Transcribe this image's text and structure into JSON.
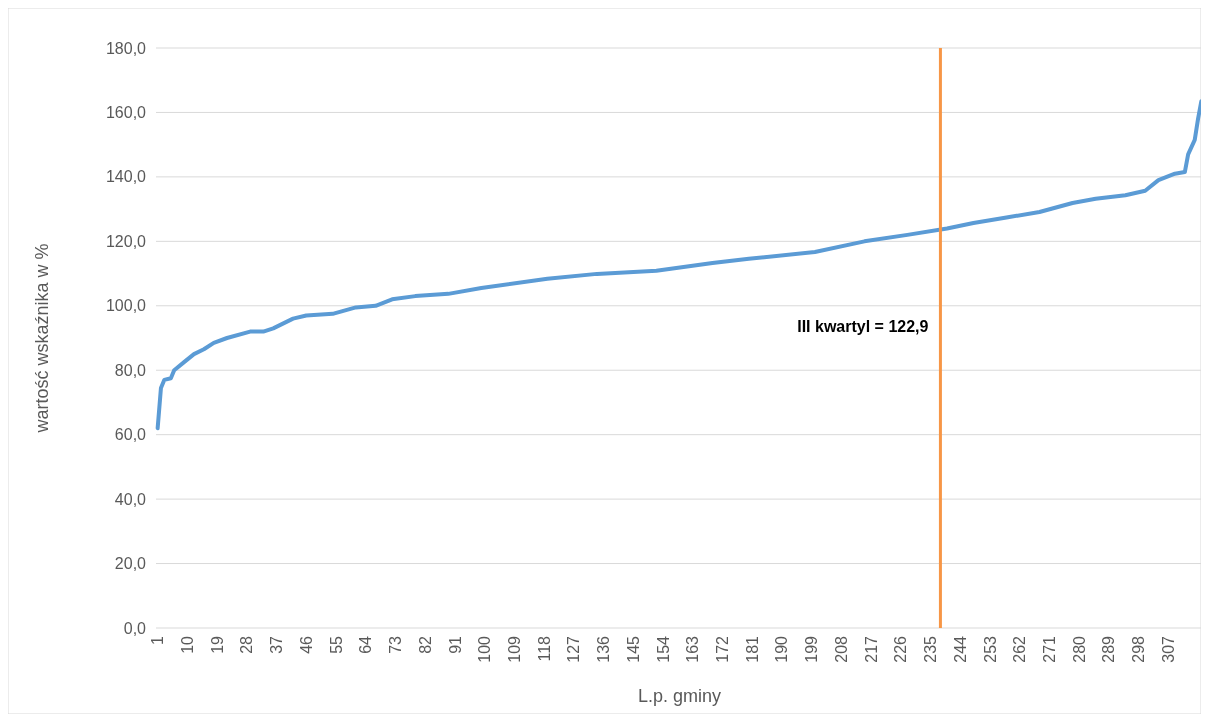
{
  "chart_data": {
    "type": "line",
    "xlabel": "L.p. gminy",
    "ylabel": "wartość wskaźnika w %",
    "x": [
      1,
      2,
      3,
      5,
      6,
      9,
      12,
      15,
      18,
      22,
      29,
      33,
      36,
      42,
      46,
      54,
      61,
      67,
      72,
      79,
      89,
      99,
      119,
      134,
      152,
      169,
      180,
      200,
      215,
      228,
      240,
      248,
      258,
      268,
      278,
      285,
      294,
      300,
      304,
      309,
      312,
      313,
      315,
      316,
      317
    ],
    "series": [
      {
        "color": "#5b9bd5",
        "values": [
          62,
          74.5,
          77,
          77.5,
          80,
          82.5,
          85,
          86.5,
          88.5,
          90,
          92,
          92,
          93,
          96,
          97,
          97.5,
          99.5,
          100,
          102,
          103,
          103.7,
          105.5,
          108.4,
          109.9,
          110.9,
          113.3,
          114.6,
          116.7,
          120,
          122,
          124,
          125.7,
          127.4,
          129.1,
          131.9,
          133.2,
          134.3,
          135.7,
          139,
          141,
          141.5,
          147,
          151.5,
          158,
          163.5
        ]
      }
    ],
    "xlim": [
      0.5,
      317.5
    ],
    "xticks": [
      1,
      10,
      19,
      28,
      37,
      46,
      55,
      64,
      73,
      82,
      91,
      100,
      109,
      118,
      127,
      136,
      145,
      154,
      163,
      172,
      181,
      190,
      199,
      208,
      217,
      226,
      235,
      244,
      253,
      262,
      271,
      280,
      289,
      298,
      307
    ],
    "ylim": [
      0,
      180
    ],
    "yticks": [
      {
        "value": 0,
        "label": "0,0"
      },
      {
        "value": 20,
        "label": "20,0"
      },
      {
        "value": 40,
        "label": "40,0"
      },
      {
        "value": 60,
        "label": "60,0"
      },
      {
        "value": 80,
        "label": "80,0"
      },
      {
        "value": 100,
        "label": "100,0"
      },
      {
        "value": 120,
        "label": "120,0"
      },
      {
        "value": 140,
        "label": "140,0"
      },
      {
        "value": 160,
        "label": "160,0"
      },
      {
        "value": 180,
        "label": "180,0"
      }
    ],
    "grid": "y",
    "ref_lines": [
      {
        "axis": "x",
        "value": 238,
        "color": "#f79646"
      }
    ],
    "annotations": [
      "III kwartyl = 122,9"
    ]
  }
}
